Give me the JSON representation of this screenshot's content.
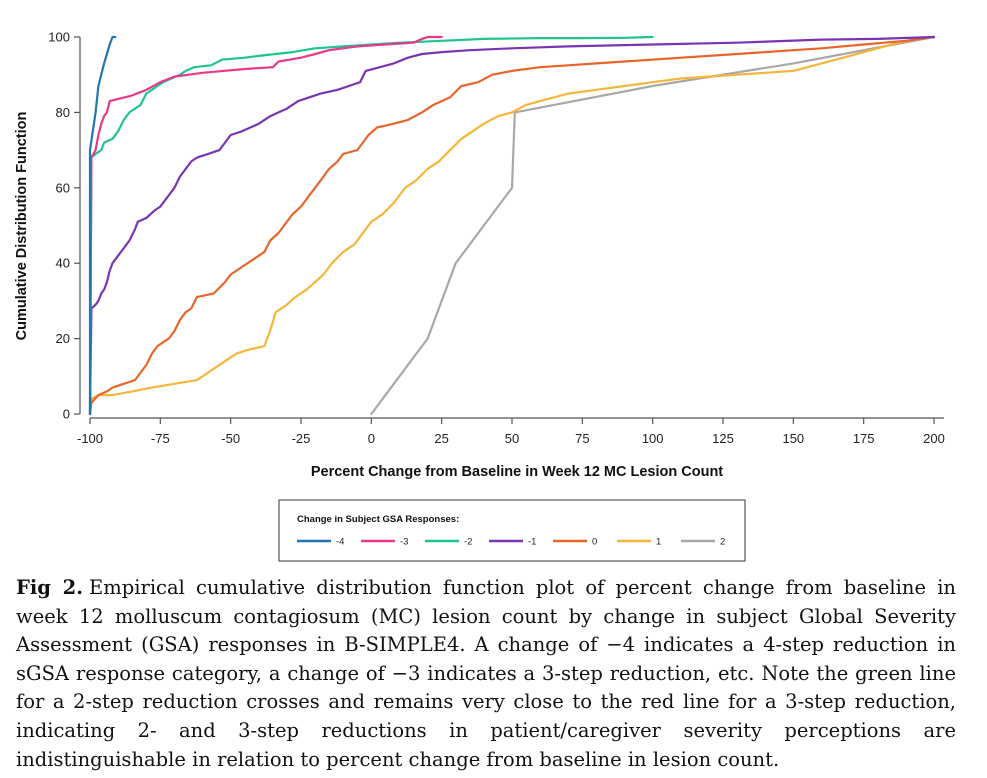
{
  "chart_data": {
    "type": "line",
    "xlabel": "Percent Change from Baseline in Week 12 MC Lesion Count",
    "ylabel": "Cumulative Distribution Function",
    "xlim": [
      -100,
      200
    ],
    "ylim": [
      0,
      100
    ],
    "x_ticks": [
      -100,
      -75,
      -50,
      -25,
      0,
      25,
      50,
      75,
      100,
      125,
      150,
      175,
      200
    ],
    "y_ticks": [
      0,
      20,
      40,
      60,
      80,
      100
    ],
    "x_tick_labels": [
      "-100",
      "-75",
      "-50",
      "-25",
      "0",
      "25",
      "50",
      "75",
      "100",
      "125",
      "150",
      "175",
      "200"
    ],
    "y_tick_labels": [
      "0",
      "20",
      "40",
      "60",
      "80",
      "100"
    ],
    "grid": false,
    "legend": {
      "title": "Change in Subject GSA Responses:",
      "placement": "bottom-center"
    },
    "series": [
      {
        "name": "-4",
        "color": "#1f77b4",
        "points": [
          [
            -100,
            0
          ],
          [
            -100,
            70
          ],
          [
            -98,
            80
          ],
          [
            -97,
            87
          ],
          [
            -95,
            93
          ],
          [
            -93,
            98
          ],
          [
            -92,
            100
          ],
          [
            -91,
            100
          ]
        ]
      },
      {
        "name": "-3",
        "color": "#e8398a",
        "points": [
          [
            -100,
            0
          ],
          [
            -99.5,
            68
          ],
          [
            -98,
            70
          ],
          [
            -97,
            74
          ],
          [
            -96,
            77
          ],
          [
            -95,
            79
          ],
          [
            -94,
            80
          ],
          [
            -93,
            83
          ],
          [
            -85,
            84.5
          ],
          [
            -80,
            86
          ],
          [
            -75,
            88
          ],
          [
            -70,
            89.5
          ],
          [
            -60,
            90.5
          ],
          [
            -45,
            91.5
          ],
          [
            -35,
            92
          ],
          [
            -33,
            93.5
          ],
          [
            -25,
            94.5
          ],
          [
            -20,
            95.5
          ],
          [
            -15,
            96.5
          ],
          [
            -5,
            97.5
          ],
          [
            5,
            98
          ],
          [
            15,
            98.5
          ],
          [
            18,
            99.5
          ],
          [
            20,
            100
          ],
          [
            25,
            100
          ]
        ]
      },
      {
        "name": "-2",
        "color": "#1fc492",
        "points": [
          [
            -100,
            0
          ],
          [
            -99.5,
            68
          ],
          [
            -98,
            69
          ],
          [
            -96,
            70
          ],
          [
            -95,
            72
          ],
          [
            -92,
            73
          ],
          [
            -90,
            75
          ],
          [
            -88,
            78
          ],
          [
            -86,
            80
          ],
          [
            -84,
            81
          ],
          [
            -82,
            82
          ],
          [
            -80,
            85
          ],
          [
            -78,
            86
          ],
          [
            -76,
            87
          ],
          [
            -74,
            88
          ],
          [
            -71,
            89
          ],
          [
            -68,
            90
          ],
          [
            -66,
            91
          ],
          [
            -63,
            92
          ],
          [
            -57,
            92.5
          ],
          [
            -53,
            94
          ],
          [
            -45,
            94.5
          ],
          [
            -40,
            95
          ],
          [
            -34,
            95.5
          ],
          [
            -28,
            96
          ],
          [
            -20,
            97
          ],
          [
            -10,
            97.5
          ],
          [
            0,
            98
          ],
          [
            10,
            98.5
          ],
          [
            25,
            99
          ],
          [
            40,
            99.5
          ],
          [
            60,
            99.7
          ],
          [
            75,
            99.7
          ],
          [
            90,
            99.8
          ],
          [
            100,
            100
          ]
        ]
      },
      {
        "name": "-1",
        "color": "#7a35b5",
        "points": [
          [
            -100,
            0
          ],
          [
            -99.5,
            28
          ],
          [
            -98,
            29
          ],
          [
            -97,
            30
          ],
          [
            -96,
            32
          ],
          [
            -95,
            33
          ],
          [
            -94,
            35
          ],
          [
            -93,
            38
          ],
          [
            -92,
            40
          ],
          [
            -90,
            42
          ],
          [
            -88,
            44
          ],
          [
            -86,
            46
          ],
          [
            -84,
            49
          ],
          [
            -83,
            51
          ],
          [
            -80,
            52
          ],
          [
            -77,
            54
          ],
          [
            -75,
            55
          ],
          [
            -73,
            57
          ],
          [
            -70,
            60
          ],
          [
            -68,
            63
          ],
          [
            -66,
            65
          ],
          [
            -64,
            67
          ],
          [
            -62,
            68
          ],
          [
            -58,
            69
          ],
          [
            -54,
            70
          ],
          [
            -52,
            72
          ],
          [
            -50,
            74
          ],
          [
            -46,
            75
          ],
          [
            -40,
            77
          ],
          [
            -36,
            79
          ],
          [
            -33,
            80
          ],
          [
            -30,
            81
          ],
          [
            -26,
            83
          ],
          [
            -22,
            84
          ],
          [
            -18,
            85
          ],
          [
            -12,
            86
          ],
          [
            -8,
            87
          ],
          [
            -4,
            88
          ],
          [
            -2,
            91
          ],
          [
            3,
            92
          ],
          [
            8,
            93
          ],
          [
            13,
            94.5
          ],
          [
            18,
            95.5
          ],
          [
            25,
            96
          ],
          [
            35,
            96.5
          ],
          [
            50,
            97
          ],
          [
            70,
            97.5
          ],
          [
            100,
            98
          ],
          [
            130,
            98.5
          ],
          [
            160,
            99.3
          ],
          [
            180,
            99.5
          ],
          [
            200,
            100
          ]
        ]
      },
      {
        "name": "0",
        "color": "#e8662a",
        "points": [
          [
            -100,
            0
          ],
          [
            -99.5,
            3
          ],
          [
            -97,
            5
          ],
          [
            -94,
            6
          ],
          [
            -92,
            7
          ],
          [
            -88,
            8
          ],
          [
            -84,
            9
          ],
          [
            -82,
            11
          ],
          [
            -80,
            13
          ],
          [
            -78,
            16
          ],
          [
            -76,
            18
          ],
          [
            -72,
            20
          ],
          [
            -70,
            22
          ],
          [
            -68,
            25
          ],
          [
            -66,
            27
          ],
          [
            -64,
            28
          ],
          [
            -62,
            31
          ],
          [
            -56,
            32
          ],
          [
            -52,
            35
          ],
          [
            -50,
            37
          ],
          [
            -46,
            39
          ],
          [
            -42,
            41
          ],
          [
            -38,
            43
          ],
          [
            -36,
            46
          ],
          [
            -33,
            48
          ],
          [
            -30,
            51
          ],
          [
            -28,
            53
          ],
          [
            -25,
            55
          ],
          [
            -22,
            58
          ],
          [
            -20,
            60
          ],
          [
            -18,
            62
          ],
          [
            -15,
            65
          ],
          [
            -12,
            67
          ],
          [
            -10,
            69
          ],
          [
            -5,
            70
          ],
          [
            -3,
            72
          ],
          [
            -1,
            74
          ],
          [
            2,
            76
          ],
          [
            8,
            77
          ],
          [
            13,
            78
          ],
          [
            18,
            80
          ],
          [
            22,
            82
          ],
          [
            25,
            83
          ],
          [
            28,
            84
          ],
          [
            32,
            87
          ],
          [
            38,
            88
          ],
          [
            43,
            90
          ],
          [
            50,
            91
          ],
          [
            60,
            92
          ],
          [
            70,
            92.5
          ],
          [
            80,
            93
          ],
          [
            90,
            93.5
          ],
          [
            100,
            94
          ],
          [
            110,
            94.5
          ],
          [
            120,
            95
          ],
          [
            130,
            95.5
          ],
          [
            140,
            96
          ],
          [
            150,
            96.5
          ],
          [
            160,
            97
          ],
          [
            175,
            98
          ],
          [
            190,
            99
          ],
          [
            200,
            100
          ]
        ]
      },
      {
        "name": "1",
        "color": "#f5b63b",
        "points": [
          [
            -100,
            0
          ],
          [
            -99.5,
            4
          ],
          [
            -97,
            5
          ],
          [
            -92,
            5
          ],
          [
            -85,
            6
          ],
          [
            -78,
            7
          ],
          [
            -70,
            8
          ],
          [
            -62,
            9
          ],
          [
            -58,
            11
          ],
          [
            -52,
            14
          ],
          [
            -48,
            16
          ],
          [
            -44,
            17
          ],
          [
            -38,
            18
          ],
          [
            -36,
            22
          ],
          [
            -34,
            27
          ],
          [
            -30,
            29
          ],
          [
            -27,
            31
          ],
          [
            -23,
            33
          ],
          [
            -20,
            35
          ],
          [
            -17,
            37
          ],
          [
            -14,
            40
          ],
          [
            -10,
            43
          ],
          [
            -6,
            45
          ],
          [
            -3,
            48
          ],
          [
            0,
            51
          ],
          [
            4,
            53
          ],
          [
            8,
            56
          ],
          [
            12,
            60
          ],
          [
            16,
            62
          ],
          [
            20,
            65
          ],
          [
            24,
            67
          ],
          [
            28,
            70
          ],
          [
            32,
            73
          ],
          [
            36,
            75
          ],
          [
            40,
            77
          ],
          [
            45,
            79
          ],
          [
            50,
            80
          ],
          [
            55,
            82
          ],
          [
            60,
            83
          ],
          [
            65,
            84
          ],
          [
            70,
            85
          ],
          [
            80,
            86
          ],
          [
            90,
            87
          ],
          [
            100,
            88
          ],
          [
            110,
            89
          ],
          [
            120,
            89.5
          ],
          [
            130,
            90
          ],
          [
            140,
            90.5
          ],
          [
            150,
            91
          ],
          [
            160,
            93
          ],
          [
            170,
            95
          ],
          [
            180,
            97
          ],
          [
            190,
            99
          ],
          [
            200,
            100
          ]
        ]
      },
      {
        "name": "2",
        "color": "#a8a8a8",
        "points": [
          [
            0,
            0
          ],
          [
            20,
            20
          ],
          [
            30,
            40
          ],
          [
            50,
            60
          ],
          [
            51,
            80
          ],
          [
            100,
            87
          ],
          [
            150,
            93
          ],
          [
            200,
            100
          ]
        ]
      }
    ]
  },
  "caption": {
    "label": "Fig 2.",
    "text": "Empirical cumulative distribution function plot of percent change from baseline in week 12 molluscum contagiosum (MC) lesion count by change in subject Global Severity Assessment (GSA) responses in B-SIMPLE4. A change of −4 indicates a 4-step reduction in sGSA response category, a change of −3 indicates a 3-step reduction, etc. Note the green line for a 2-step reduction crosses and remains very close to the red line for a 3-step reduction, indicating 2- and 3-step reductions in patient/caregiver severity perceptions are indistinguishable in relation to percent change from baseline in lesion count."
  }
}
